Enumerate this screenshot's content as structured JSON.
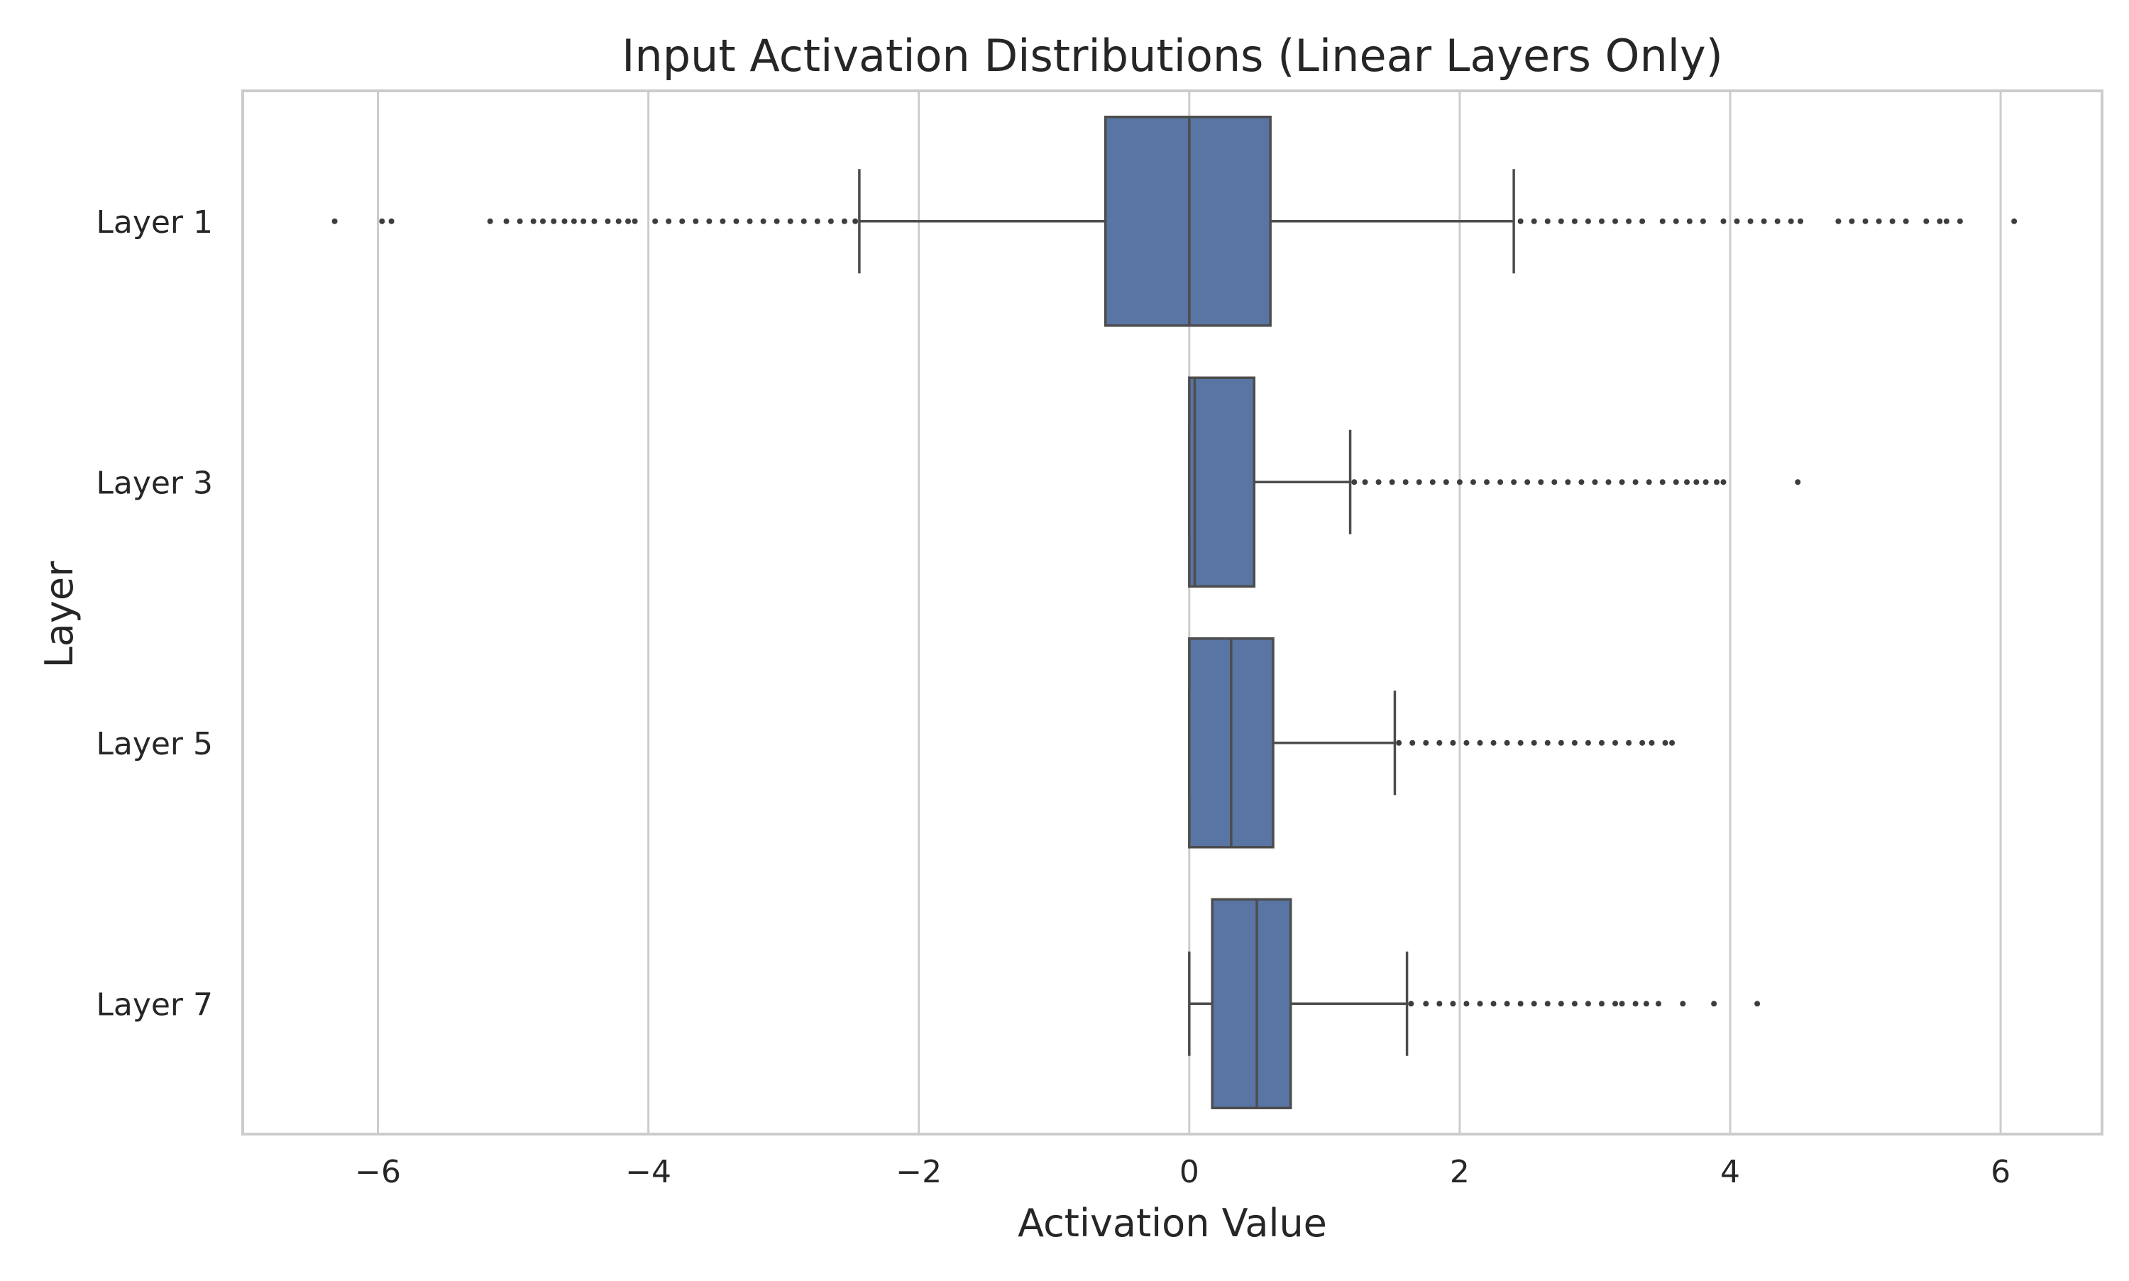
{
  "chart_data": {
    "type": "boxplot",
    "orientation": "horizontal",
    "title": "Input Activation Distributions (Linear Layers Only)",
    "xlabel": "Activation Value",
    "ylabel": "Layer",
    "xlim": [
      -7.0,
      6.75
    ],
    "xticks": [
      -6,
      -4,
      -2,
      0,
      2,
      4,
      6
    ],
    "xtick_labels": [
      "−6",
      "−4",
      "−2",
      "0",
      "2",
      "4",
      "6"
    ],
    "grid": "vertical",
    "color": "#5875a4",
    "categories": [
      "Layer 1",
      "Layer 3",
      "Layer 5",
      "Layer 7"
    ],
    "boxes": [
      {
        "name": "Layer 1",
        "whisker_low": -2.44,
        "q1": -0.62,
        "median": 0.0,
        "q3": 0.6,
        "whisker_high": 2.4,
        "outliers": [
          -6.32,
          -5.97,
          -5.9,
          -5.17,
          -5.05,
          -4.95,
          -4.85,
          -4.78,
          -4.7,
          -4.62,
          -4.55,
          -4.48,
          -4.4,
          -4.3,
          -4.22,
          -4.15,
          -4.1,
          -3.95,
          -3.85,
          -3.75,
          -3.65,
          -3.55,
          -3.45,
          -3.35,
          -3.25,
          -3.15,
          -3.05,
          -2.95,
          -2.85,
          -2.75,
          -2.65,
          -2.55,
          -2.47,
          2.45,
          2.55,
          2.65,
          2.75,
          2.85,
          2.95,
          3.05,
          3.15,
          3.25,
          3.35,
          3.5,
          3.6,
          3.7,
          3.8,
          3.95,
          4.05,
          4.15,
          4.25,
          4.35,
          4.45,
          4.52,
          4.8,
          4.9,
          5.0,
          5.1,
          5.2,
          5.3,
          5.45,
          5.55,
          5.6,
          5.7,
          6.1
        ]
      },
      {
        "name": "Layer 3",
        "whisker_low": 0.0,
        "q1": 0.0,
        "median": 0.04,
        "q3": 0.48,
        "whisker_high": 1.19,
        "outliers": [
          1.22,
          1.3,
          1.4,
          1.5,
          1.6,
          1.7,
          1.8,
          1.9,
          2.0,
          2.1,
          2.2,
          2.3,
          2.4,
          2.5,
          2.6,
          2.7,
          2.8,
          2.9,
          3.0,
          3.1,
          3.2,
          3.3,
          3.4,
          3.5,
          3.6,
          3.68,
          3.75,
          3.82,
          3.9,
          3.95,
          4.5
        ]
      },
      {
        "name": "Layer 5",
        "whisker_low": 0.0,
        "q1": 0.0,
        "median": 0.31,
        "q3": 0.62,
        "whisker_high": 1.52,
        "outliers": [
          1.55,
          1.65,
          1.75,
          1.85,
          1.95,
          2.05,
          2.15,
          2.25,
          2.35,
          2.45,
          2.55,
          2.65,
          2.75,
          2.85,
          2.95,
          3.05,
          3.15,
          3.25,
          3.35,
          3.42,
          3.52,
          3.57
        ]
      },
      {
        "name": "Layer 7",
        "whisker_low": 0.0,
        "q1": 0.17,
        "median": 0.5,
        "q3": 0.75,
        "whisker_high": 1.61,
        "outliers": [
          1.64,
          1.75,
          1.85,
          1.95,
          2.05,
          2.15,
          2.25,
          2.35,
          2.45,
          2.55,
          2.65,
          2.75,
          2.85,
          2.95,
          3.05,
          3.15,
          3.2,
          3.3,
          3.38,
          3.47,
          3.65,
          3.88,
          4.2
        ]
      }
    ]
  }
}
